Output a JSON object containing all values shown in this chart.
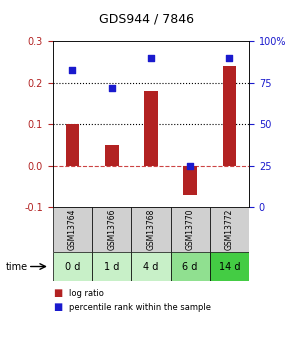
{
  "title": "GDS944 / 7846",
  "samples": [
    "GSM13764",
    "GSM13766",
    "GSM13768",
    "GSM13770",
    "GSM13772"
  ],
  "timepoints": [
    "0 d",
    "1 d",
    "4 d",
    "6 d",
    "14 d"
  ],
  "log_ratio": [
    0.1,
    0.05,
    0.18,
    -0.07,
    0.24
  ],
  "percentile_rank": [
    83,
    72,
    90,
    25,
    90
  ],
  "ylim_left": [
    -0.1,
    0.3
  ],
  "ylim_right": [
    0,
    100
  ],
  "yticks_left": [
    -0.1,
    0.0,
    0.1,
    0.2,
    0.3
  ],
  "yticks_right": [
    0,
    25,
    50,
    75,
    100
  ],
  "right_tick_labels": [
    "0",
    "25",
    "50",
    "75",
    "100%"
  ],
  "bar_color": "#b22222",
  "scatter_color": "#1a1acd",
  "dotted_line_y": [
    0.1,
    0.2
  ],
  "zero_line_color": "#cc4444",
  "bg_color": "#ffffff",
  "plot_bg": "#ffffff",
  "sample_label_bg": "#d0d0d0",
  "time_label_bg_colors": [
    "#c8f0c8",
    "#c8f0c8",
    "#c8f0c8",
    "#90e090",
    "#44cc44"
  ],
  "legend_log_ratio_color": "#b22222",
  "legend_percentile_color": "#1a1acd",
  "bar_width": 0.35
}
